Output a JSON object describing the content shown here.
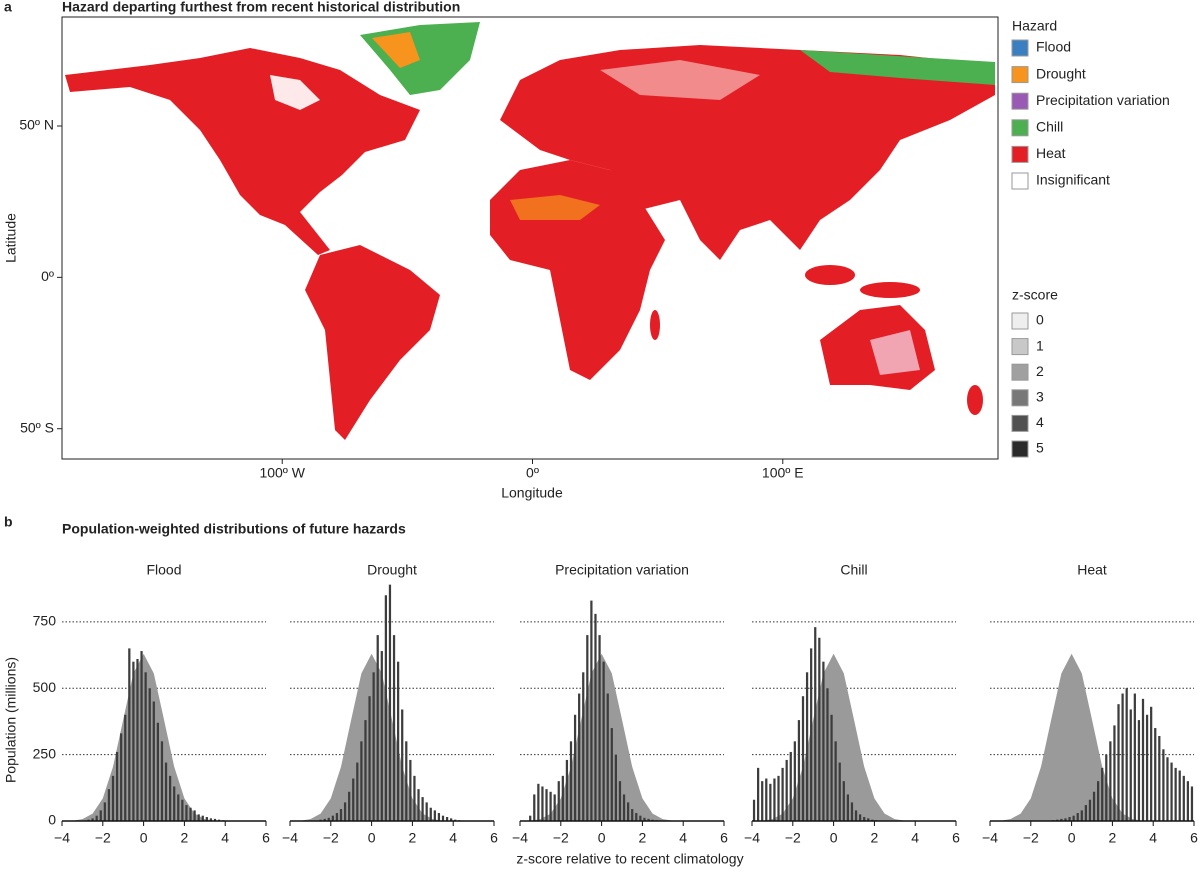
{
  "panel_labels": [
    "a",
    "b"
  ],
  "panel_b_title": "Population-weighted distributions of future hazards",
  "shared_xlabel": "z-score relative to recent climatology",
  "shared_ylabel": "Population (millions)",
  "chart_data": [
    {
      "type": "map",
      "title": "Hazard departing furthest from recent historical distribution",
      "xlabel": "Longitude",
      "ylabel": "Latitude",
      "xlim": [
        -188,
        186
      ],
      "ylim": [
        -60,
        86
      ],
      "xticks": [
        {
          "value": -100,
          "label": "100º W"
        },
        {
          "value": 0,
          "label": "0º"
        },
        {
          "value": 100,
          "label": "100º E"
        }
      ],
      "yticks": [
        {
          "value": 50,
          "label": "50º N"
        },
        {
          "value": 0,
          "label": "0º"
        },
        {
          "value": -50,
          "label": "50º S"
        }
      ],
      "legend_title": "Hazard",
      "legend": [
        {
          "name": "Flood",
          "color": "#3a7fc1"
        },
        {
          "name": "Drought",
          "color": "#f7941d"
        },
        {
          "name": "Precipitation variation",
          "color": "#9b59b6"
        },
        {
          "name": "Chill",
          "color": "#4caf50"
        },
        {
          "name": "Heat",
          "color": "#e31e24"
        },
        {
          "name": "Insignificant",
          "color": "#ffffff"
        }
      ],
      "z_legend_title": "z-score",
      "z_legend": [
        {
          "value": 0,
          "color": "#eeeeee"
        },
        {
          "value": 1,
          "color": "#c8c8c8"
        },
        {
          "value": 2,
          "color": "#a0a0a0"
        },
        {
          "value": 3,
          "color": "#787878"
        },
        {
          "value": 4,
          "color": "#505050"
        },
        {
          "value": 5,
          "color": "#2a2a2a"
        }
      ]
    },
    {
      "type": "histogram",
      "title": "Flood",
      "xlim": [
        -4,
        6
      ],
      "ylim": [
        0,
        900
      ],
      "ytick_labels": true,
      "xticks": [
        {
          "value": -4,
          "label": "−4"
        },
        {
          "value": -2,
          "label": "−2"
        },
        0,
        2,
        4,
        6
      ],
      "yticks": [
        0,
        250,
        500,
        750
      ],
      "bins": [
        -4,
        -3.8,
        -3.6,
        -3.4,
        -3.2,
        -3,
        -2.8,
        -2.6,
        -2.4,
        -2.2,
        -2,
        -1.8,
        -1.6,
        -1.4,
        -1.2,
        -1,
        -0.8,
        -0.6,
        -0.4,
        -0.2,
        0,
        0.2,
        0.4,
        0.6,
        0.8,
        1,
        1.2,
        1.4,
        1.6,
        1.8,
        2,
        2.2,
        2.4,
        2.6,
        2.8,
        3,
        3.2,
        3.4,
        3.6,
        3.8,
        4,
        4.2,
        4.4,
        4.6,
        4.8,
        5,
        5.2,
        5.4,
        5.6,
        5.8,
        6
      ],
      "values": [
        0,
        0,
        0,
        0,
        0,
        0,
        5,
        10,
        20,
        40,
        70,
        120,
        170,
        260,
        330,
        400,
        650,
        600,
        610,
        640,
        560,
        500,
        450,
        370,
        300,
        220,
        170,
        130,
        100,
        80,
        60,
        50,
        40,
        25,
        20,
        15,
        10,
        8,
        5,
        3,
        2,
        0,
        0,
        0,
        0,
        0,
        0,
        0,
        0,
        0
      ],
      "reference_x": [
        -4,
        -3.5,
        -3,
        -2.5,
        -2,
        -1.5,
        -1,
        -0.5,
        0,
        0.5,
        1,
        1.5,
        2,
        2.5,
        3,
        3.5,
        4,
        4.5,
        5,
        5.5,
        6
      ],
      "reference_values": [
        0,
        1,
        7,
        28,
        85,
        204,
        382,
        556,
        630,
        556,
        382,
        204,
        85,
        28,
        7,
        1,
        0,
        0,
        0,
        0,
        0
      ]
    },
    {
      "type": "histogram",
      "title": "Drought",
      "xlim": [
        -4,
        6
      ],
      "ylim": [
        0,
        900
      ],
      "xticks": [
        {
          "value": -4,
          "label": "−4"
        },
        {
          "value": -2,
          "label": "−2"
        },
        0,
        2,
        4,
        6
      ],
      "yticks": [
        0,
        250,
        500,
        750
      ],
      "bins": [
        -4,
        -3.8,
        -3.6,
        -3.4,
        -3.2,
        -3,
        -2.8,
        -2.6,
        -2.4,
        -2.2,
        -2,
        -1.8,
        -1.6,
        -1.4,
        -1.2,
        -1,
        -0.8,
        -0.6,
        -0.4,
        -0.2,
        0,
        0.2,
        0.4,
        0.6,
        0.8,
        1,
        1.2,
        1.4,
        1.6,
        1.8,
        2,
        2.2,
        2.4,
        2.6,
        2.8,
        3,
        3.2,
        3.4,
        3.6,
        3.8,
        4,
        4.2,
        4.4,
        4.6,
        4.8,
        5,
        5.2,
        5.4,
        5.6,
        5.8,
        6
      ],
      "values": [
        0,
        0,
        0,
        0,
        0,
        0,
        2,
        5,
        8,
        12,
        20,
        30,
        45,
        70,
        110,
        160,
        220,
        300,
        380,
        470,
        560,
        700,
        640,
        850,
        890,
        700,
        600,
        420,
        300,
        230,
        170,
        120,
        90,
        70,
        50,
        40,
        30,
        20,
        15,
        10,
        5,
        3,
        2,
        0,
        0,
        0,
        0,
        0,
        0,
        0
      ],
      "reference_x": [
        -4,
        -3.5,
        -3,
        -2.5,
        -2,
        -1.5,
        -1,
        -0.5,
        0,
        0.5,
        1,
        1.5,
        2,
        2.5,
        3,
        3.5,
        4,
        4.5,
        5,
        5.5,
        6
      ],
      "reference_values": [
        0,
        1,
        7,
        28,
        85,
        204,
        382,
        556,
        630,
        556,
        382,
        204,
        85,
        28,
        7,
        1,
        0,
        0,
        0,
        0,
        0
      ]
    },
    {
      "type": "histogram",
      "title": "Precipitation variation",
      "xlim": [
        -4,
        6
      ],
      "ylim": [
        0,
        900
      ],
      "xticks": [
        {
          "value": -4,
          "label": "−4"
        },
        {
          "value": -2,
          "label": "−2"
        },
        0,
        2,
        4,
        6
      ],
      "yticks": [
        0,
        250,
        500,
        750
      ],
      "bins": [
        -4,
        -3.8,
        -3.6,
        -3.4,
        -3.2,
        -3,
        -2.8,
        -2.6,
        -2.4,
        -2.2,
        -2,
        -1.8,
        -1.6,
        -1.4,
        -1.2,
        -1,
        -0.8,
        -0.6,
        -0.4,
        -0.2,
        0,
        0.2,
        0.4,
        0.6,
        0.8,
        1,
        1.2,
        1.4,
        1.6,
        1.8,
        2,
        2.2,
        2.4,
        2.6,
        2.8,
        3,
        3.2,
        3.4,
        3.6,
        3.8,
        4,
        4.2,
        4.4,
        4.6,
        4.8,
        5,
        5.2,
        5.4,
        5.6,
        5.8,
        6
      ],
      "values": [
        0,
        0,
        20,
        100,
        140,
        130,
        120,
        110,
        100,
        150,
        170,
        230,
        300,
        400,
        480,
        560,
        700,
        830,
        780,
        700,
        600,
        480,
        350,
        250,
        150,
        100,
        70,
        45,
        30,
        20,
        12,
        8,
        5,
        3,
        2,
        0,
        0,
        0,
        0,
        0,
        0,
        0,
        0,
        0,
        0,
        0,
        0,
        0,
        0,
        0
      ],
      "reference_x": [
        -4,
        -3.5,
        -3,
        -2.5,
        -2,
        -1.5,
        -1,
        -0.5,
        0,
        0.5,
        1,
        1.5,
        2,
        2.5,
        3,
        3.5,
        4,
        4.5,
        5,
        5.5,
        6
      ],
      "reference_values": [
        0,
        1,
        7,
        28,
        85,
        204,
        382,
        556,
        630,
        556,
        382,
        204,
        85,
        28,
        7,
        1,
        0,
        0,
        0,
        0,
        0
      ]
    },
    {
      "type": "histogram",
      "title": "Chill",
      "xlim": [
        -4,
        6
      ],
      "ylim": [
        0,
        900
      ],
      "xticks": [
        {
          "value": -4,
          "label": "−4"
        },
        {
          "value": -2,
          "label": "−2"
        },
        0,
        2,
        4,
        6
      ],
      "yticks": [
        0,
        250,
        500,
        750
      ],
      "bins": [
        -4,
        -3.8,
        -3.6,
        -3.4,
        -3.2,
        -3,
        -2.8,
        -2.6,
        -2.4,
        -2.2,
        -2,
        -1.8,
        -1.6,
        -1.4,
        -1.2,
        -1,
        -0.8,
        -0.6,
        -0.4,
        -0.2,
        0,
        0.2,
        0.4,
        0.6,
        0.8,
        1,
        1.2,
        1.4,
        1.6,
        1.8,
        2,
        2.2,
        2.4,
        2.6,
        2.8,
        3,
        3.2,
        3.4,
        3.6,
        3.8,
        4,
        4.2,
        4.4,
        4.6,
        4.8,
        5,
        5.2,
        5.4,
        5.6,
        5.8,
        6
      ],
      "values": [
        80,
        200,
        150,
        160,
        140,
        160,
        170,
        200,
        230,
        260,
        300,
        380,
        470,
        560,
        650,
        730,
        690,
        600,
        500,
        400,
        300,
        220,
        150,
        100,
        70,
        40,
        25,
        15,
        10,
        5,
        3,
        2,
        0,
        0,
        0,
        0,
        0,
        0,
        0,
        0,
        0,
        0,
        0,
        0,
        0,
        0,
        0,
        0,
        0,
        0
      ],
      "reference_x": [
        -4,
        -3.5,
        -3,
        -2.5,
        -2,
        -1.5,
        -1,
        -0.5,
        0,
        0.5,
        1,
        1.5,
        2,
        2.5,
        3,
        3.5,
        4,
        4.5,
        5,
        5.5,
        6
      ],
      "reference_values": [
        0,
        1,
        7,
        28,
        85,
        204,
        382,
        556,
        630,
        556,
        382,
        204,
        85,
        28,
        7,
        1,
        0,
        0,
        0,
        0,
        0
      ]
    },
    {
      "type": "histogram",
      "title": "Heat",
      "xlim": [
        -4,
        6
      ],
      "ylim": [
        0,
        900
      ],
      "xticks": [
        {
          "value": -4,
          "label": "−4"
        },
        {
          "value": -2,
          "label": "−2"
        },
        0,
        2,
        4,
        6
      ],
      "yticks": [
        0,
        250,
        500,
        750
      ],
      "bins": [
        -4,
        -3.8,
        -3.6,
        -3.4,
        -3.2,
        -3,
        -2.8,
        -2.6,
        -2.4,
        -2.2,
        -2,
        -1.8,
        -1.6,
        -1.4,
        -1.2,
        -1,
        -0.8,
        -0.6,
        -0.4,
        -0.2,
        0,
        0.2,
        0.4,
        0.6,
        0.8,
        1,
        1.2,
        1.4,
        1.6,
        1.8,
        2,
        2.2,
        2.4,
        2.6,
        2.8,
        3,
        3.2,
        3.4,
        3.6,
        3.8,
        4,
        4.2,
        4.4,
        4.6,
        4.8,
        5,
        5.2,
        5.4,
        5.6,
        5.8,
        6
      ],
      "values": [
        0,
        0,
        0,
        0,
        0,
        0,
        0,
        0,
        0,
        0,
        0,
        0,
        0,
        0,
        2,
        3,
        5,
        8,
        10,
        15,
        20,
        30,
        40,
        60,
        80,
        110,
        150,
        200,
        250,
        300,
        360,
        440,
        480,
        500,
        420,
        480,
        380,
        460,
        400,
        430,
        350,
        320,
        270,
        240,
        220,
        200,
        190,
        170,
        150,
        130
      ],
      "reference_x": [
        -4,
        -3.5,
        -3,
        -2.5,
        -2,
        -1.5,
        -1,
        -0.5,
        0,
        0.5,
        1,
        1.5,
        2,
        2.5,
        3,
        3.5,
        4,
        4.5,
        5,
        5.5,
        6
      ],
      "reference_values": [
        0,
        1,
        7,
        28,
        85,
        204,
        382,
        556,
        630,
        556,
        382,
        204,
        85,
        28,
        7,
        1,
        0,
        0,
        0,
        0,
        0
      ]
    }
  ]
}
